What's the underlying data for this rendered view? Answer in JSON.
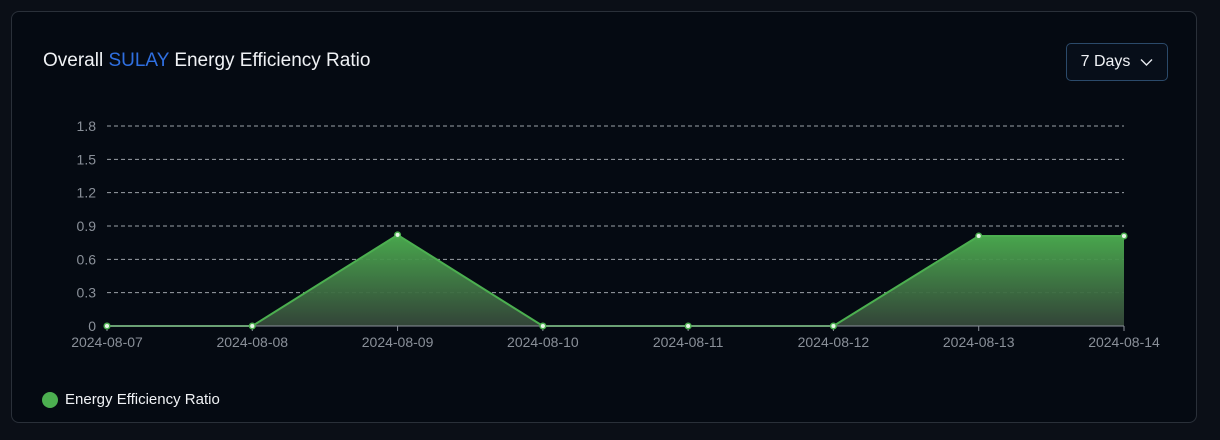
{
  "header": {
    "title_prefix": "Overall",
    "title_accent": "SULAY",
    "title_suffix": "Energy Efficiency Ratio",
    "range_label": "7 Days"
  },
  "colors": {
    "background": "#050a12",
    "accent_blue": "#2f6fe0",
    "series_green": "#4caf50",
    "grid": "#cfd4db",
    "axis_text": "#8a9099"
  },
  "chart_data": {
    "type": "area",
    "title": "Overall SULAY Energy Efficiency Ratio",
    "xlabel": "",
    "ylabel": "",
    "x": [
      "2024-08-07",
      "2024-08-08",
      "2024-08-09",
      "2024-08-10",
      "2024-08-11",
      "2024-08-12",
      "2024-08-13",
      "2024-08-14"
    ],
    "series": [
      {
        "name": "Energy Efficiency Ratio",
        "values": [
          0,
          0,
          0.82,
          0,
          0,
          0,
          0.81,
          0.81
        ]
      }
    ],
    "ylim": [
      0,
      1.8
    ],
    "yticks": [
      0,
      0.3,
      0.6,
      0.9,
      1.2,
      1.5,
      1.8
    ],
    "ytick_labels": [
      "0",
      "0.3",
      "0.6",
      "0.9",
      "1.2",
      "1.5",
      "1.8"
    ],
    "grid": true,
    "grid_style": "dashed",
    "legend_position": "bottom-left"
  }
}
